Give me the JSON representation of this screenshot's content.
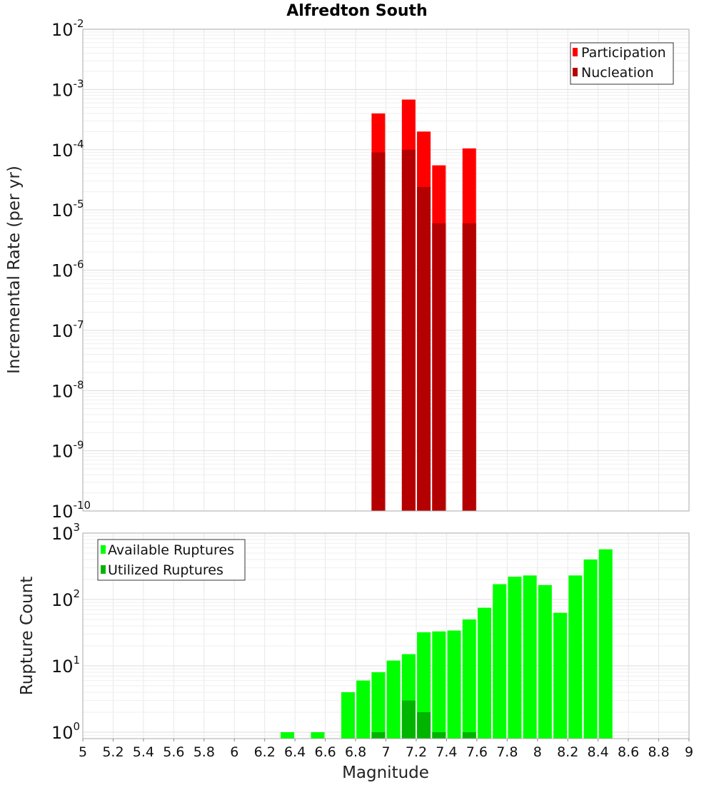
{
  "chart_data": [
    {
      "type": "bar",
      "title": "Alfredton South",
      "xlabel": "Magnitude",
      "ylabel": "Incremental Rate (per yr)",
      "yscale": "log",
      "ylim": [
        1e-10,
        0.01
      ],
      "xlim": [
        5,
        9
      ],
      "y_ticks": [
        "10^-10",
        "10^-9",
        "10^-8",
        "10^-7",
        "10^-6",
        "10^-5",
        "10^-4",
        "10^-3",
        "10^-2"
      ],
      "legend": {
        "position": "top-right",
        "entries": [
          "Participation",
          "Nucleation"
        ]
      },
      "series": [
        {
          "name": "Participation",
          "color": "#ff0000",
          "points": [
            {
              "x": 6.95,
              "y": 0.0004
            },
            {
              "x": 7.15,
              "y": 0.00068
            },
            {
              "x": 7.25,
              "y": 0.0002
            },
            {
              "x": 7.35,
              "y": 5.5e-05
            },
            {
              "x": 7.55,
              "y": 0.000105
            }
          ]
        },
        {
          "name": "Nucleation",
          "color": "#b40000",
          "points": [
            {
              "x": 6.95,
              "y": 9e-05
            },
            {
              "x": 7.15,
              "y": 0.0001
            },
            {
              "x": 7.25,
              "y": 2.4e-05
            },
            {
              "x": 7.35,
              "y": 6e-06
            },
            {
              "x": 7.55,
              "y": 6e-06
            }
          ]
        }
      ]
    },
    {
      "type": "bar",
      "title": "",
      "xlabel": "Magnitude",
      "ylabel": "Rupture Count",
      "yscale": "log",
      "ylim": [
        0.8,
        1000
      ],
      "xlim": [
        5,
        9
      ],
      "x_ticks": [
        "5",
        "5.2",
        "5.4",
        "5.6",
        "5.8",
        "6",
        "6.2",
        "6.4",
        "6.6",
        "6.8",
        "7",
        "7.2",
        "7.4",
        "7.6",
        "7.8",
        "8",
        "8.2",
        "8.4",
        "8.6",
        "8.8",
        "9"
      ],
      "y_ticks": [
        "10^0",
        "10^1",
        "10^2",
        "10^3"
      ],
      "legend": {
        "position": "top-left",
        "entries": [
          "Available Ruptures",
          "Utilized Ruptures"
        ]
      },
      "series": [
        {
          "name": "Available Ruptures",
          "color": "#00ff00",
          "points": [
            {
              "x": 6.35,
              "y": 1
            },
            {
              "x": 6.55,
              "y": 1
            },
            {
              "x": 6.75,
              "y": 4
            },
            {
              "x": 6.85,
              "y": 6
            },
            {
              "x": 6.95,
              "y": 8
            },
            {
              "x": 7.05,
              "y": 12
            },
            {
              "x": 7.15,
              "y": 15
            },
            {
              "x": 7.25,
              "y": 32
            },
            {
              "x": 7.35,
              "y": 33
            },
            {
              "x": 7.45,
              "y": 34
            },
            {
              "x": 7.55,
              "y": 50
            },
            {
              "x": 7.65,
              "y": 75
            },
            {
              "x": 7.75,
              "y": 170
            },
            {
              "x": 7.85,
              "y": 220
            },
            {
              "x": 7.95,
              "y": 230
            },
            {
              "x": 8.05,
              "y": 165
            },
            {
              "x": 8.15,
              "y": 63
            },
            {
              "x": 8.25,
              "y": 230
            },
            {
              "x": 8.35,
              "y": 400
            },
            {
              "x": 8.45,
              "y": 570
            }
          ]
        },
        {
          "name": "Utilized Ruptures",
          "color": "#00b400",
          "points": [
            {
              "x": 6.95,
              "y": 1
            },
            {
              "x": 7.15,
              "y": 3
            },
            {
              "x": 7.25,
              "y": 2
            },
            {
              "x": 7.35,
              "y": 1
            },
            {
              "x": 7.55,
              "y": 1
            }
          ]
        }
      ]
    }
  ]
}
